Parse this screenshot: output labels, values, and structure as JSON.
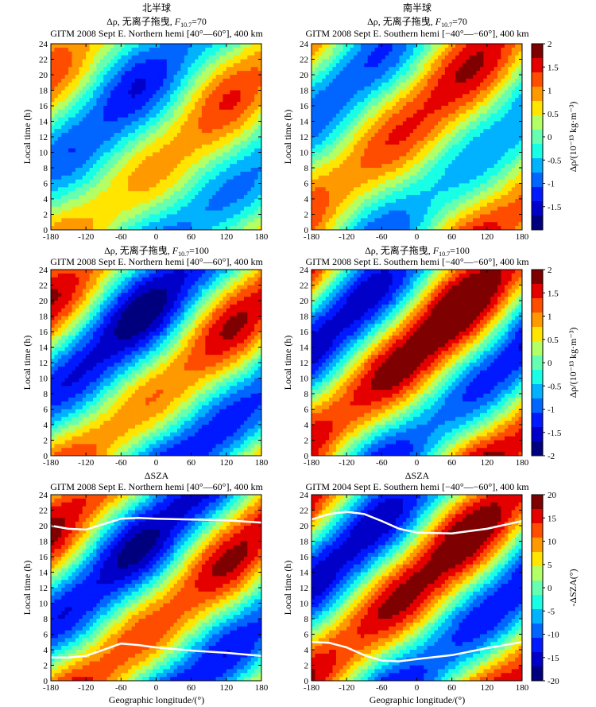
{
  "figure": {
    "col_titles": [
      "北半球",
      "南半球"
    ],
    "xlabel": "Geographic longitude/(°)",
    "xticks": [
      -180,
      -120,
      -60,
      0,
      60,
      120,
      180
    ],
    "yticks": [
      0,
      2,
      4,
      6,
      8,
      10,
      12,
      14,
      16,
      18,
      20,
      22,
      24
    ],
    "ylabel": "Local time (h)"
  },
  "chart_data": [
    {
      "type": "heatmap",
      "title_line1_prefix": "Δρ, 无离子拖曳, ",
      "title_line1_f": "F",
      "title_line1_fsub": "10.7",
      "title_line1_value": "=70",
      "title_line2": "GITM 2008 Sept E. Northern hemi [40°—60°], 400 km",
      "xlim": [
        -180,
        180
      ],
      "ylim": [
        0,
        24
      ],
      "ylabel": "Local time (h)",
      "field": {
        "bias": 0.0,
        "amp": 0.55,
        "phase": -125,
        "tilt": 1.0,
        "amp2": 0.15,
        "phase2": 40,
        "width": 3.5
      }
    },
    {
      "type": "heatmap",
      "title_line1_prefix": "Δρ, 无离子拖曳, ",
      "title_line1_f": "F",
      "title_line1_fsub": "10.7",
      "title_line1_value": "=70",
      "title_line2": "GITM 2008 Sept E. Southern hemi [−40°—−60°], 400 km",
      "xlim": [
        -180,
        180
      ],
      "ylim": [
        0,
        24
      ],
      "ylabel": "Local time (h)",
      "field": {
        "bias": 0.15,
        "amp": 0.6,
        "phase": 140,
        "tilt": 1.0,
        "amp2": 0.15,
        "phase2": -20,
        "width": 4.0
      }
    },
    {
      "type": "heatmap",
      "title_line1_prefix": "Δρ, 无离子拖曳, ",
      "title_line1_f": "F",
      "title_line1_fsub": "10.7",
      "title_line1_value": "=100",
      "title_line2": "GITM 2008 Sept E. Northern hemi [40°—60°], 400 km",
      "xlim": [
        -180,
        180
      ],
      "ylim": [
        0,
        24
      ],
      "ylabel": "Local time (h)",
      "field": {
        "bias": -0.05,
        "amp": 0.75,
        "phase": -120,
        "tilt": 1.0,
        "amp2": 0.2,
        "phase2": 60,
        "width": 3.5
      }
    },
    {
      "type": "heatmap",
      "title_line1_prefix": "Δρ, 无离子拖曳, ",
      "title_line1_f": "F",
      "title_line1_fsub": "10.7",
      "title_line1_value": "=100",
      "title_line2": "GITM 2008 Sept E. Southern hemi [−40°—−60°], 400 km",
      "xlim": [
        -180,
        180
      ],
      "ylim": [
        0,
        24
      ],
      "ylabel": "Local time (h)",
      "field": {
        "bias": 0.15,
        "amp": 0.85,
        "phase": 150,
        "tilt": 1.0,
        "amp2": 0.2,
        "phase2": -40,
        "width": 3.5
      }
    },
    {
      "type": "heatmap",
      "title_line1_prefix": "ΔSZA",
      "title_line2": "GITM 2008 Sept E. Northern hemi [40°—60°], 400 km",
      "xlim": [
        -180,
        180
      ],
      "ylim": [
        0,
        24
      ],
      "ylabel": "Local time (h)",
      "xlabel": "Geographic longitude/(°)",
      "field": {
        "bias": 0.0,
        "amp": 0.8,
        "phase": -110,
        "tilt": 1.0,
        "amp2": 0.15,
        "phase2": 70,
        "width": 3.0
      },
      "overlay_lines": [
        {
          "x": [
            -180,
            -150,
            -120,
            -90,
            -60,
            -30,
            0,
            60,
            120,
            180
          ],
          "y": [
            20,
            19.6,
            19.5,
            20.2,
            20.9,
            21.0,
            20.9,
            20.8,
            20.7,
            20.4
          ]
        },
        {
          "x": [
            -180,
            -150,
            -120,
            -90,
            -60,
            -30,
            0,
            60,
            120,
            180
          ],
          "y": [
            3,
            3,
            3.2,
            4.0,
            4.8,
            4.6,
            4.3,
            3.9,
            3.6,
            3.2
          ]
        }
      ]
    },
    {
      "type": "heatmap",
      "title_line1_prefix": "ΔSZA",
      "title_line2": "GITM 2004 Sept E. Southern hemi [−40°—−60°], 400 km",
      "xlim": [
        -180,
        180
      ],
      "ylim": [
        0,
        24
      ],
      "ylabel": "Local time (h)",
      "xlabel": "Geographic longitude/(°)",
      "field": {
        "bias": 0.1,
        "amp": 0.85,
        "phase": 170,
        "tilt": 1.0,
        "amp2": 0.15,
        "phase2": -30,
        "width": 3.5
      },
      "overlay_lines": [
        {
          "x": [
            -180,
            -150,
            -120,
            -90,
            -60,
            -30,
            0,
            60,
            120,
            180
          ],
          "y": [
            20.8,
            21.5,
            21.8,
            21.5,
            20.6,
            19.6,
            19.1,
            19.0,
            19.6,
            20.6
          ]
        },
        {
          "x": [
            -180,
            -150,
            -120,
            -90,
            -60,
            -30,
            0,
            60,
            120,
            180
          ],
          "y": [
            5.0,
            4.9,
            4.3,
            3.3,
            2.6,
            2.5,
            2.8,
            3.3,
            4.2,
            5.0
          ]
        }
      ]
    }
  ],
  "colorbars": [
    {
      "label": "Δρ/(10⁻¹³ kg·m⁻³)",
      "ticks": [
        "2",
        "1.5",
        "1",
        "0.5",
        "0",
        "-0.5",
        "-1",
        "-1.5"
      ],
      "range": [
        -2,
        2
      ]
    },
    {
      "label": "Δρ/(10⁻¹³ kg·m⁻³)",
      "ticks": [
        "2",
        "1.5",
        "1",
        "0.5",
        "0",
        "-0.5",
        "-1",
        "-1.5",
        "-2"
      ],
      "range": [
        -2,
        2
      ]
    },
    {
      "label": "-ΔSZA(°)",
      "ticks": [
        "20",
        "15",
        "10",
        "5",
        "0",
        "-5",
        "-10",
        "-15",
        "-20"
      ],
      "range": [
        -20,
        20
      ]
    }
  ],
  "colormap": [
    "#00007f",
    "#0000c8",
    "#0019ff",
    "#0066ff",
    "#00b2ff",
    "#19ffe5",
    "#66ffb2",
    "#b2ff66",
    "#ffe500",
    "#ff9900",
    "#ff4d00",
    "#e50000",
    "#7f0000"
  ]
}
